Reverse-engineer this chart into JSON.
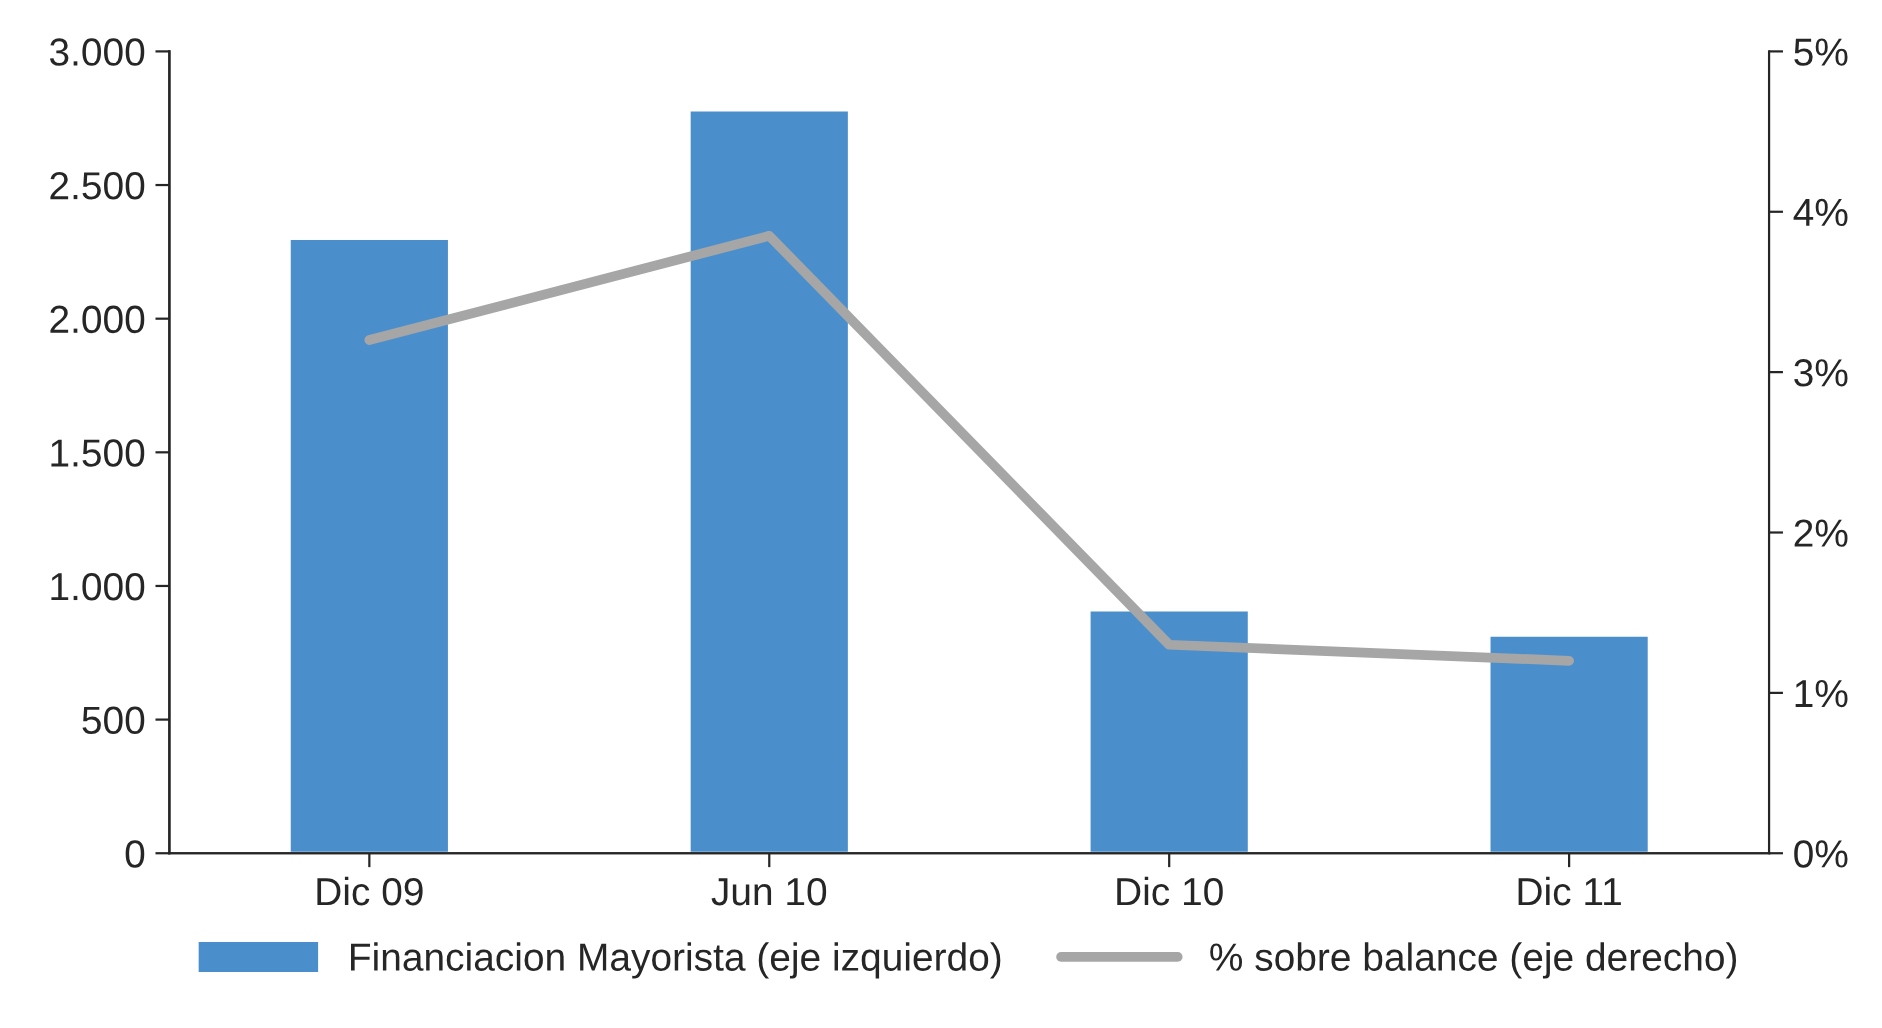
{
  "chart_data": {
    "type": "bar",
    "categories": [
      "Dic 09",
      "Jun 10",
      "Dic 10",
      "Dic 11"
    ],
    "series": [
      {
        "name": "Financiacion Mayorista (eje izquierdo)",
        "color": "#4a8fcc",
        "values": [
          2300,
          2780,
          910,
          815
        ]
      },
      {
        "name": "% sobre balance (eje derecho)",
        "type": "line",
        "axis": "y2",
        "color": "#a6a6a6",
        "values": [
          3.2,
          3.85,
          1.3,
          1.2
        ]
      }
    ],
    "ylim": [
      0,
      3000
    ],
    "yticks": [
      0,
      500,
      {
        "value": 1000,
        "label": "1.000"
      },
      {
        "value": 1500,
        "label": "1.500"
      },
      {
        "value": 2000,
        "label": "2.000"
      },
      {
        "value": 2500,
        "label": "2.500"
      },
      {
        "value": 3000,
        "label": "3.000"
      }
    ],
    "y2lim": [
      0,
      5
    ],
    "y2ticks": [
      {
        "value": 0,
        "label": "0%"
      },
      {
        "value": 1,
        "label": "1%"
      },
      {
        "value": 2,
        "label": "2%"
      },
      {
        "value": 3,
        "label": "3%"
      },
      {
        "value": 4,
        "label": "4%"
      },
      {
        "value": 5,
        "label": "5%"
      }
    ],
    "grid": false,
    "legend": "bottom",
    "marker": "none",
    "line_style": "solid"
  }
}
